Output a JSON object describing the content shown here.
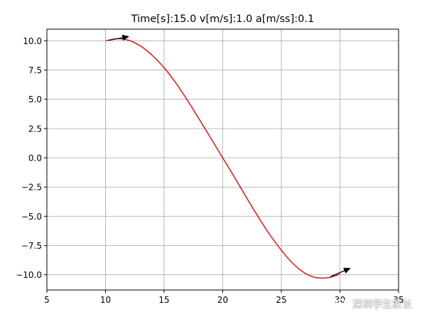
{
  "chart_data": {
    "type": "line",
    "title": "Time[s]:15.0 v[m/s]:1.0 a[m/ss]:0.1",
    "xlabel": "",
    "ylabel": "",
    "xlim": [
      5,
      35
    ],
    "ylim": [
      -11.3,
      11.0
    ],
    "xticks": [
      "5",
      "10",
      "15",
      "20",
      "25",
      "30",
      "35"
    ],
    "yticks": [
      "10.0",
      "7.5",
      "5.0",
      "2.5",
      "0.0",
      "−2.5",
      "−5.0",
      "−7.5",
      "−10.0"
    ],
    "grid": true,
    "series": [
      {
        "color": "#d62728",
        "x": [
          10,
          11,
          12,
          13,
          14,
          15,
          16,
          17,
          18,
          19,
          20,
          21,
          22,
          23,
          24,
          25,
          26,
          27,
          28,
          29,
          30
        ],
        "y": [
          10.0,
          10.18,
          10.04,
          9.55,
          8.75,
          7.7,
          6.4,
          4.9,
          3.3,
          1.65,
          0.0,
          -1.65,
          -3.35,
          -5.0,
          -6.55,
          -7.9,
          -9.05,
          -9.85,
          -10.25,
          -10.25,
          -9.95
        ]
      }
    ],
    "arrows": [
      {
        "x": 10.3,
        "y": 10.05,
        "dx": 1.7,
        "dy": 0.32,
        "color": "#000000"
      },
      {
        "x": 29.2,
        "y": -10.15,
        "dx": 1.7,
        "dy": 0.72,
        "color": "#000000"
      }
    ]
  },
  "watermark": {
    "text": "深圳学生家长",
    "icon": "wechat-icon"
  }
}
